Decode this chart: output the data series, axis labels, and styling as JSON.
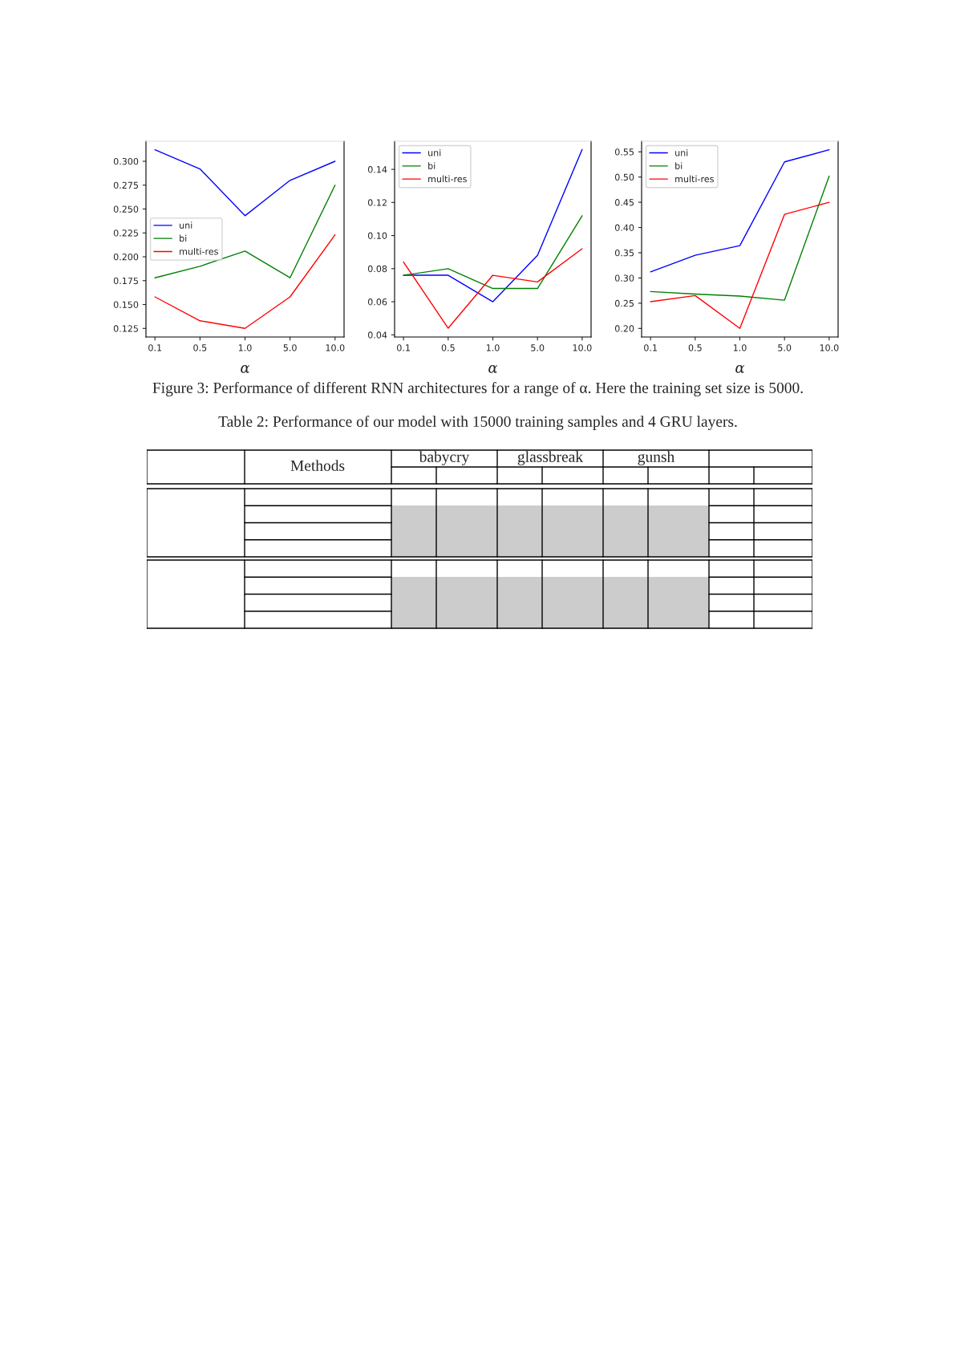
{
  "chart_data": [
    {
      "type": "line",
      "categories": [
        "0.1",
        "0.5",
        "1.0",
        "5.0",
        "10.0"
      ],
      "xlabel": "α",
      "ylim": [
        0.116,
        0.321
      ],
      "yticks": [
        0.125,
        {
          "value": 0.15,
          "label": "0.150"
        },
        0.175,
        {
          "value": 0.2,
          "label": "0.200"
        },
        0.225,
        {
          "value": 0.25,
          "label": "0.250"
        },
        0.275,
        {
          "value": 0.3,
          "label": "0.300"
        }
      ],
      "legend": "center left",
      "grid": false,
      "series": [
        {
          "name": "uni",
          "color": "#0000ff",
          "values": [
            0.312,
            0.292,
            0.243,
            0.28,
            0.3
          ]
        },
        {
          "name": "bi",
          "color": "#008000",
          "values": [
            0.178,
            0.19,
            0.206,
            0.178,
            0.275
          ]
        },
        {
          "name": "multi-res",
          "color": "#ff0000",
          "values": [
            0.158,
            0.133,
            0.125,
            0.158,
            0.223
          ]
        }
      ],
      "annotations": [
        "Figure 3: Performance of different RNN architectures for a range of α. Here the training set size is 5000."
      ]
    },
    {
      "type": "line",
      "categories": [
        "0.1",
        "0.5",
        "1.0",
        "5.0",
        "10.0"
      ],
      "xlabel": "α",
      "ylim": [
        0.0387,
        0.157
      ],
      "yticks": [
        0.04,
        0.06,
        0.08,
        {
          "value": 0.1,
          "label": "0.10"
        },
        0.12,
        0.14
      ],
      "legend": "upper left",
      "grid": false,
      "series": [
        {
          "name": "uni",
          "color": "#0000ff",
          "values": [
            0.076,
            0.076,
            0.06,
            0.088,
            0.152
          ]
        },
        {
          "name": "bi",
          "color": "#008000",
          "values": [
            0.076,
            0.08,
            0.068,
            0.068,
            0.112
          ]
        },
        {
          "name": "multi-res",
          "color": "#ff0000",
          "values": [
            0.084,
            0.044,
            0.076,
            0.072,
            0.092
          ]
        }
      ]
    },
    {
      "type": "line",
      "categories": [
        "0.1",
        "0.5",
        "1.0",
        "5.0",
        "10.0"
      ],
      "xlabel": "α",
      "ylim": [
        0.183,
        0.571
      ],
      "yticks": [
        {
          "value": 0.2,
          "label": "0.20"
        },
        0.25,
        {
          "value": 0.3,
          "label": "0.30"
        },
        0.35,
        {
          "value": 0.4,
          "label": "0.40"
        },
        0.45,
        {
          "value": 0.5,
          "label": "0.50"
        },
        0.55
      ],
      "legend": "upper left",
      "grid": false,
      "series": [
        {
          "name": "uni",
          "color": "#0000ff",
          "values": [
            0.312,
            0.345,
            0.364,
            0.53,
            0.554
          ]
        },
        {
          "name": "bi",
          "color": "#008000",
          "values": [
            0.273,
            0.268,
            0.264,
            0.256,
            0.502
          ]
        },
        {
          "name": "multi-res",
          "color": "#ff0000",
          "values": [
            0.253,
            0.265,
            0.2,
            0.426,
            0.45
          ]
        }
      ]
    },
    {
      "type": "other",
      "title": "Table 2: Performance of our model with 15000 training samples and 4 GRU layers.",
      "annotations": [
        "Methods",
        "babycry",
        "glassbreak",
        "gunsh"
      ]
    }
  ]
}
